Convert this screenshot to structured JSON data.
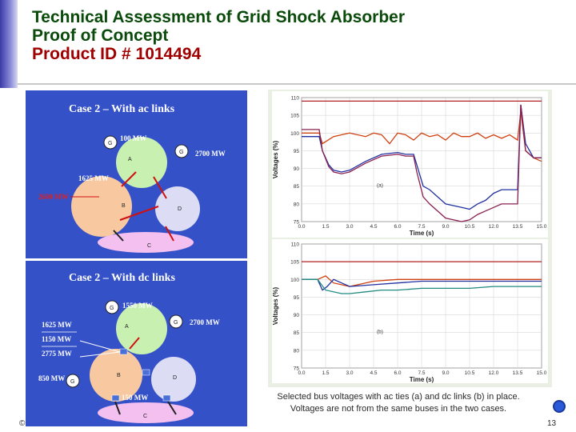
{
  "slide": {
    "title_line1": "Technical Assessment of Grid Shock Absorber",
    "title_line2": "Proof of Concept",
    "title_line3": "Product ID # 1014494",
    "caption_line1": "Selected bus voltages with ac ties (a) and dc links (b) in place.",
    "caption_line2": "Voltages are not from the same buses in the two cases.",
    "page_number": "13",
    "bullet": "©"
  },
  "diagram_ac": {
    "title": "Case 2 – With ac links",
    "flow_top": "100 MW",
    "flow_right": "2700 MW",
    "flow_left": "1625 MW",
    "flow_left_red": "2600 MW",
    "node_a": "A",
    "node_b": "B",
    "node_c": "C",
    "node_d": "D",
    "gen": "G"
  },
  "diagram_dc": {
    "title": "Case 2 – With dc links",
    "flow_top": "1550 MW",
    "flow_right": "2700 MW",
    "flow_left1": "1625 MW",
    "flow_left2": "1150 MW",
    "flow_left3": "2775 MW",
    "flow_gen": "850 MW",
    "flow_bottom": "150 MW",
    "node_a": "A",
    "node_b": "B",
    "node_c": "C",
    "node_d": "D",
    "gen": "G"
  },
  "chart_data": [
    {
      "type": "line",
      "panel_label": "(a)",
      "xlabel": "Time (s)",
      "ylabel": "Voltages (%)",
      "xlim": [
        0,
        15
      ],
      "ylim": [
        75,
        110
      ],
      "xticks": [
        "0.0",
        "1.5",
        "3.0",
        "4.5",
        "6.0",
        "7.5",
        "9.0",
        "10.5",
        "12.0",
        "13.5",
        "15.0"
      ],
      "yticks": [
        "75",
        "80",
        "85",
        "90",
        "95",
        "100",
        "105",
        "110"
      ],
      "grid": true,
      "series": [
        {
          "color": "#d04010",
          "x": [
            0,
            1.1,
            1.3,
            2,
            3,
            4,
            4.5,
            5,
            5.5,
            6,
            6.5,
            7,
            7.5,
            8,
            8.5,
            9,
            9.5,
            10,
            10.5,
            11,
            11.5,
            12,
            12.5,
            13,
            13.5,
            13.7,
            14,
            14.5,
            15
          ],
          "y": [
            100,
            100,
            97,
            99,
            100,
            99,
            100,
            99.5,
            97,
            100,
            99.5,
            98,
            100,
            99,
            99.5,
            98,
            100,
            99,
            99,
            100,
            98.5,
            99.5,
            98.5,
            99.5,
            98,
            106,
            95,
            93,
            92
          ]
        },
        {
          "color": "#2030a0",
          "x": [
            0,
            1.1,
            1.3,
            1.7,
            2,
            2.5,
            3,
            4,
            5,
            6,
            6.5,
            7,
            7.2,
            7.6,
            8,
            9,
            10,
            10.5,
            11,
            11.5,
            12,
            12.5,
            13,
            13.5,
            13.7,
            14,
            14.5,
            15
          ],
          "y": [
            99,
            99,
            95,
            91,
            89.5,
            89,
            89.5,
            92,
            94,
            94.5,
            94,
            94,
            91,
            85,
            84,
            80,
            79,
            78.5,
            80,
            81,
            83,
            84,
            84,
            84,
            108,
            97,
            93,
            93
          ]
        },
        {
          "color": "#8a2050",
          "x": [
            0,
            1.1,
            1.3,
            1.7,
            2,
            2.5,
            3,
            4,
            5,
            6,
            6.5,
            7,
            7.2,
            7.6,
            8,
            9,
            10,
            10.5,
            11,
            11.5,
            12,
            12.5,
            13,
            13.5,
            13.7,
            14,
            14.5,
            15
          ],
          "y": [
            101,
            101,
            95,
            90.5,
            89,
            88.5,
            89,
            91.5,
            93.5,
            94,
            93.5,
            93.5,
            89,
            82,
            80,
            76,
            75,
            75.5,
            77,
            78,
            79,
            80,
            80,
            80,
            108,
            95,
            93,
            93
          ]
        },
        {
          "color": "#b02020",
          "x": [
            0,
            15
          ],
          "y": [
            109,
            109
          ]
        }
      ]
    },
    {
      "type": "line",
      "panel_label": "(b)",
      "xlabel": "Time (s)",
      "ylabel": "Voltages (%)",
      "xlim": [
        0,
        15
      ],
      "ylim": [
        75,
        110
      ],
      "xticks": [
        "0.0",
        "1.5",
        "3.0",
        "4.5",
        "6.0",
        "7.5",
        "9.0",
        "10.5",
        "12.0",
        "13.5",
        "15.0"
      ],
      "yticks": [
        "75",
        "80",
        "85",
        "90",
        "95",
        "100",
        "105",
        "110"
      ],
      "grid": true,
      "series": [
        {
          "color": "#b02020",
          "x": [
            0,
            15
          ],
          "y": [
            105,
            105
          ]
        },
        {
          "color": "#d04010",
          "x": [
            0,
            1,
            1.5,
            2,
            3,
            4.5,
            6,
            7.5,
            9,
            10.5,
            12,
            13.5,
            15
          ],
          "y": [
            100,
            100,
            101,
            99,
            98,
            99.5,
            100,
            100,
            100,
            100,
            100,
            100,
            100
          ]
        },
        {
          "color": "#2030a0",
          "x": [
            0,
            1,
            1.3,
            1.6,
            2,
            2.5,
            3,
            4.5,
            6,
            7.5,
            9,
            10.5,
            12,
            13.5,
            15
          ],
          "y": [
            100,
            100,
            97,
            98,
            100,
            99,
            98,
            98.5,
            99,
            99.5,
            99.5,
            99.5,
            99.5,
            99.5,
            99.5
          ]
        },
        {
          "color": "#208a80",
          "x": [
            0,
            1,
            1.5,
            2.5,
            3,
            4,
            5,
            6,
            7.5,
            9,
            10.5,
            12,
            13.5,
            15
          ],
          "y": [
            100,
            100,
            97,
            96,
            96,
            96.5,
            97,
            97,
            97.5,
            97.5,
            97.5,
            98,
            98,
            98
          ]
        }
      ]
    }
  ]
}
